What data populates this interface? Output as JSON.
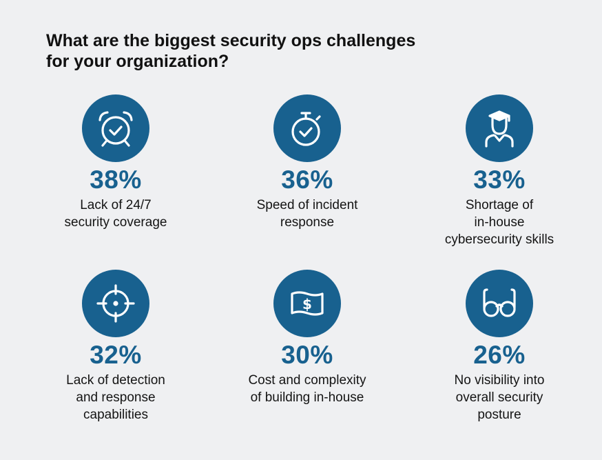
{
  "title": {
    "line1": "What are the biggest security ops challenges",
    "line2": "for your organization?"
  },
  "chart_data": {
    "type": "table",
    "unit": "%",
    "items": [
      {
        "value": 38,
        "value_label": "38%",
        "label_lines": [
          "Lack of 24/7",
          "security coverage"
        ],
        "icon": "alarm-clock-icon"
      },
      {
        "value": 36,
        "value_label": "36%",
        "label_lines": [
          "Speed of incident",
          "response"
        ],
        "icon": "stopwatch-icon"
      },
      {
        "value": 33,
        "value_label": "33%",
        "label_lines": [
          "Shortage of",
          "in-house",
          "cybersecurity skills"
        ],
        "icon": "graduate-icon"
      },
      {
        "value": 32,
        "value_label": "32%",
        "label_lines": [
          "Lack of detection",
          "and response",
          "capabilities"
        ],
        "icon": "crosshair-icon"
      },
      {
        "value": 30,
        "value_label": "30%",
        "label_lines": [
          "Cost and complexity",
          "of building in-house"
        ],
        "icon": "dollar-bill-icon"
      },
      {
        "value": 26,
        "value_label": "26%",
        "label_lines": [
          "No visibility into",
          "overall security",
          "posture"
        ],
        "icon": "glasses-icon"
      }
    ]
  },
  "colors": {
    "accent": "#18618f",
    "background": "#eff0f2",
    "text": "#141414"
  }
}
